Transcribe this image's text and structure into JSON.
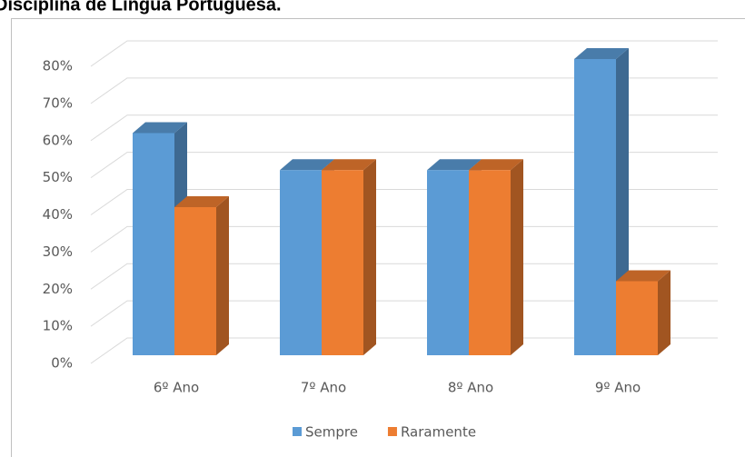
{
  "chart_data": {
    "type": "bar3d",
    "title": "Disciplina de Língua Portuguesa.",
    "categories": [
      "6º Ano",
      "7º Ano",
      "8º Ano",
      "9º Ano"
    ],
    "series": [
      {
        "name": "Sempre",
        "color": "#5b9bd5",
        "values": [
          60,
          50,
          50,
          80
        ]
      },
      {
        "name": "Raramente",
        "color": "#ed7d31",
        "values": [
          40,
          50,
          50,
          20
        ]
      }
    ],
    "ylim": [
      0,
      80
    ],
    "yticks": [
      {
        "value": 0,
        "label": "0%"
      },
      {
        "value": 10,
        "label": "10%"
      },
      {
        "value": 20,
        "label": "20%"
      },
      {
        "value": 30,
        "label": "30%"
      },
      {
        "value": 40,
        "label": "40%"
      },
      {
        "value": 50,
        "label": "50%"
      },
      {
        "value": 60,
        "label": "60%"
      },
      {
        "value": 70,
        "label": "70%"
      },
      {
        "value": 80,
        "label": "80%"
      }
    ],
    "grid": true,
    "legend": "bottom"
  }
}
